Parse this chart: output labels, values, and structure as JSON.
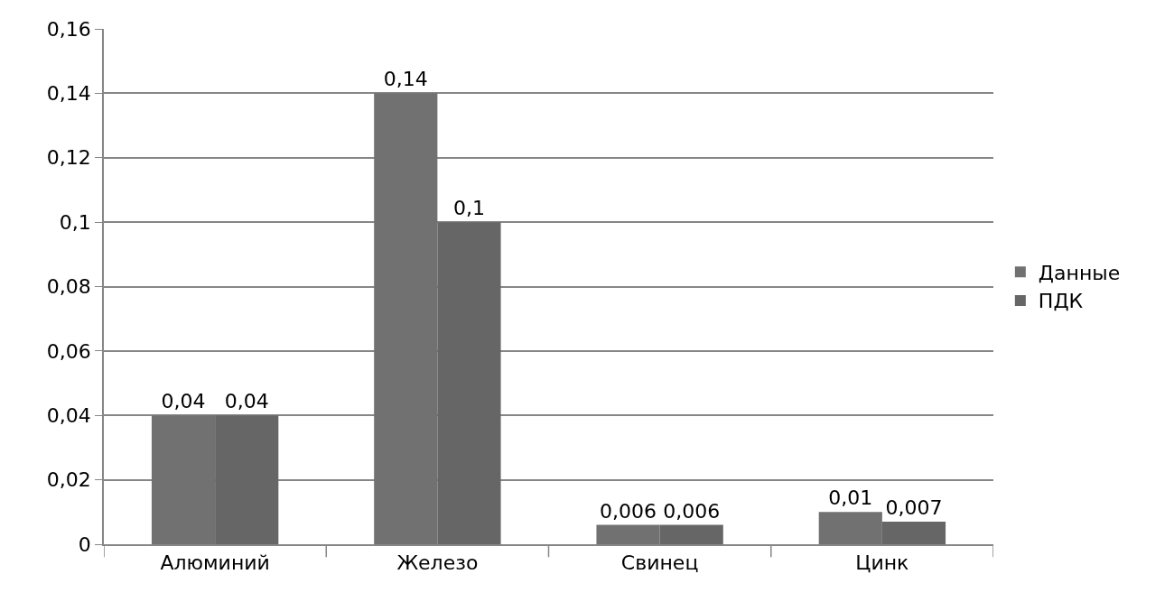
{
  "chart_data": {
    "type": "bar",
    "categories": [
      "Алюминий",
      "Железо",
      "Свинец",
      "Цинк"
    ],
    "series": [
      {
        "name": "Данные",
        "color": "#717171",
        "values": [
          0.04,
          0.14,
          0.006,
          0.01
        ],
        "value_labels": [
          "0,04",
          "0,14",
          "0,006",
          "0,01"
        ]
      },
      {
        "name": "ПДК",
        "color": "#666666",
        "values": [
          0.04,
          0.1,
          0.006,
          0.007
        ],
        "value_labels": [
          "0,04",
          "0,1",
          "0,006",
          "0,007"
        ]
      }
    ],
    "ylim": [
      0,
      0.16
    ],
    "yticks": [
      0,
      {
        "value": 0.02,
        "label": "0,02"
      },
      {
        "value": 0.04,
        "label": "0,04"
      },
      {
        "value": 0.06,
        "label": "0,06"
      },
      {
        "value": 0.08,
        "label": "0,08"
      },
      {
        "value": 0.1,
        "label": "0,1"
      },
      {
        "value": 0.12,
        "label": "0,12"
      },
      {
        "value": 0.14,
        "label": "0,14"
      },
      {
        "value": 0.16,
        "label": "0,16"
      }
    ],
    "grid": "y",
    "legend": "right"
  }
}
